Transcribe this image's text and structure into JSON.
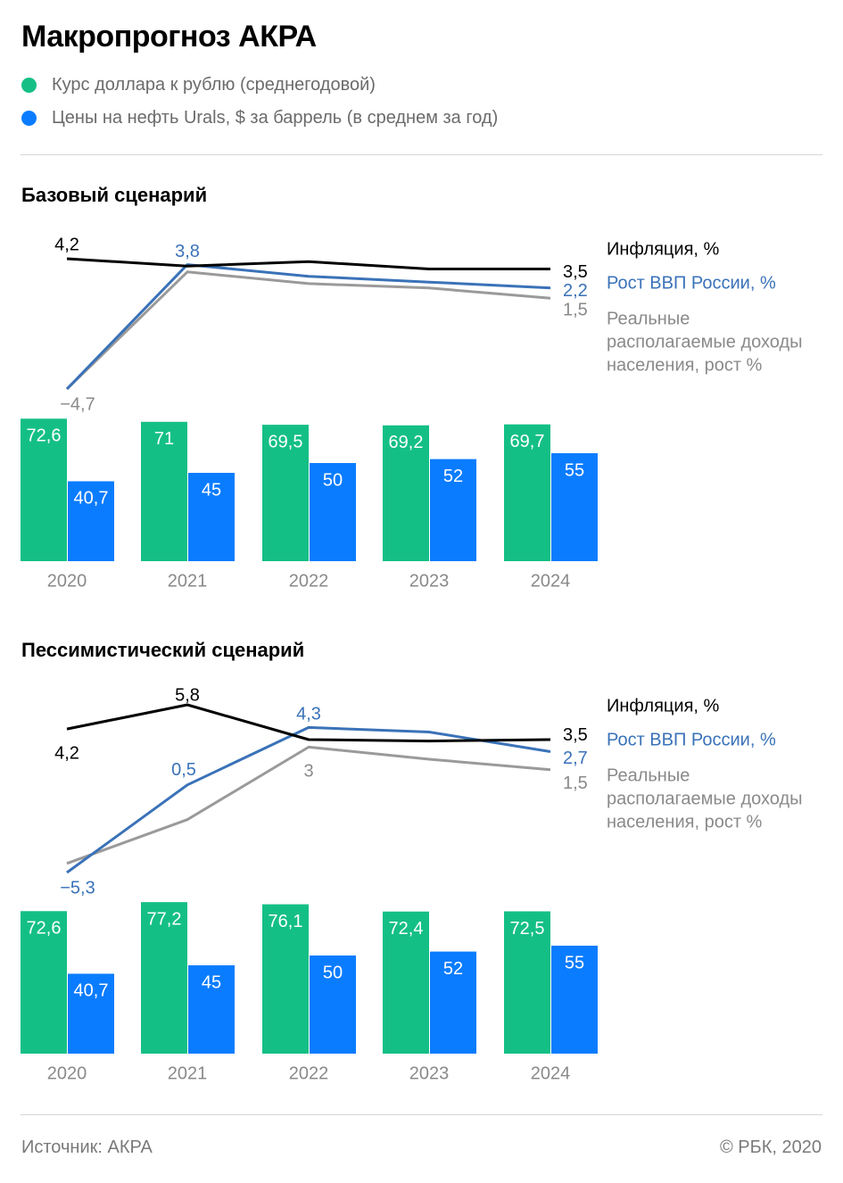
{
  "title": "Макропрогноз АКРА",
  "legend": [
    {
      "label": "Курс доллара к рублю (среднегодовой)",
      "color": "#14bf86"
    },
    {
      "label": "Цены на нефть Urals, $ за баррель (в среднем за год)",
      "color": "#0a7cff"
    }
  ],
  "colors": {
    "inflation": "#000000",
    "gdp": "#3a72b8",
    "income": "#9a9a9a",
    "usd": "#14bf86",
    "oil": "#0a7cff",
    "axis": "#8a8a8a"
  },
  "line_labels": {
    "inflation": "Инфляция, %",
    "gdp": "Рост ВВП России, %",
    "income": [
      "Реальные",
      "располагаемые доходы",
      "населения, рост %"
    ]
  },
  "chart_data": [
    {
      "type": "bar+line",
      "title": "Базовый сценарий",
      "categories": [
        "2020",
        "2021",
        "2022",
        "2023",
        "2024"
      ],
      "bar_series": [
        {
          "name": "Курс доллара к рублю (среднегодовой)",
          "values": [
            72.6,
            71,
            69.5,
            69.2,
            69.7
          ],
          "labels": [
            "72,6",
            "71",
            "69,5",
            "69,2",
            "69,7"
          ]
        },
        {
          "name": "Цены на нефть Urals, $ за баррель (в среднем за год)",
          "values": [
            40.7,
            45,
            50,
            52,
            55
          ],
          "labels": [
            "40,7",
            "45",
            "50",
            "52",
            "55"
          ]
        }
      ],
      "line_series": [
        {
          "name": "Инфляция, %",
          "values": [
            4.2,
            3.7,
            4.0,
            3.5,
            3.5
          ],
          "point_labels": [
            "4,2",
            "",
            "",
            "",
            "3,5"
          ]
        },
        {
          "name": "Рост ВВП России, %",
          "values": [
            -4.7,
            3.8,
            3.0,
            2.6,
            2.2
          ],
          "point_labels": [
            "",
            "3,8",
            "",
            "",
            "2,2"
          ]
        },
        {
          "name": "Реальные располагаемые доходы населения, рост %",
          "values": [
            -4.7,
            3.3,
            2.5,
            2.2,
            1.5
          ],
          "point_labels": [
            "−4,7",
            "",
            "",
            "",
            "1,5"
          ]
        }
      ]
    },
    {
      "type": "bar+line",
      "title": "Пессимистический сценарий",
      "categories": [
        "2020",
        "2021",
        "2022",
        "2023",
        "2024"
      ],
      "bar_series": [
        {
          "name": "Курс доллара к рублю (среднегодовой)",
          "values": [
            72.6,
            77.2,
            76.1,
            72.4,
            72.5
          ],
          "labels": [
            "72,6",
            "77,2",
            "76,1",
            "72,4",
            "72,5"
          ]
        },
        {
          "name": "Цены на нефть Urals, $ за баррель (в среднем за год)",
          "values": [
            40.7,
            45,
            50,
            52,
            55
          ],
          "labels": [
            "40,7",
            "45",
            "50",
            "52",
            "55"
          ]
        }
      ],
      "line_series": [
        {
          "name": "Инфляция, %",
          "values": [
            4.2,
            5.8,
            3.5,
            3.4,
            3.5
          ],
          "point_labels": [
            "4,2",
            "5,8",
            "",
            "",
            "3,5"
          ]
        },
        {
          "name": "Рост ВВП России, %",
          "values": [
            -5.3,
            0.5,
            4.3,
            4.0,
            2.7
          ],
          "point_labels": [
            "−5,3",
            "0,5",
            "4,3",
            "",
            "2,7"
          ]
        },
        {
          "name": "Реальные располагаемые доходы населения, рост %",
          "values": [
            -4.7,
            -1.8,
            3.0,
            2.2,
            1.5
          ],
          "point_labels": [
            "",
            "",
            "3",
            "",
            "1,5"
          ]
        }
      ]
    }
  ],
  "footer": {
    "source": "Источник: АКРА",
    "copyright": "© РБК, 2020"
  }
}
